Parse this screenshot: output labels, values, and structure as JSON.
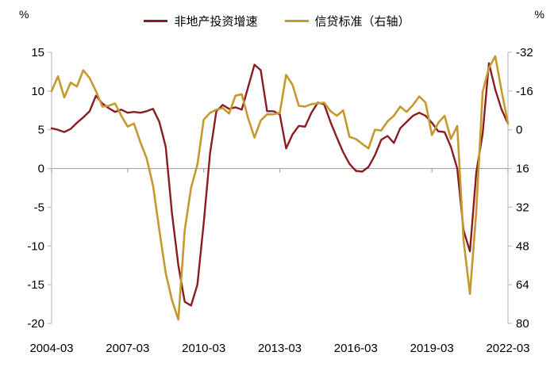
{
  "header": {
    "left_unit": "%",
    "right_unit": "%"
  },
  "legend": {
    "items": [
      {
        "label": "非地产投资增速",
        "color": "#8B1C22"
      },
      {
        "label": "信贷标准（右轴）",
        "color": "#C6992E"
      }
    ]
  },
  "chart_data": {
    "type": "line",
    "title": "",
    "x_start": "2004-03",
    "x_end": "2022-03",
    "x_frequency": "quarterly",
    "x_tick_labels": [
      "2004-03",
      "2007-03",
      "2010-03",
      "2013-03",
      "2016-03",
      "2019-03",
      "2022-03"
    ],
    "left_axis": {
      "label": "%",
      "ticks": [
        15,
        10,
        5,
        0,
        -5,
        -10,
        -15,
        -20
      ],
      "range": [
        -20,
        15
      ]
    },
    "right_axis": {
      "label": "%",
      "ticks": [
        -32,
        -16,
        0,
        16,
        32,
        48,
        64,
        80
      ],
      "range": [
        -32,
        80
      ],
      "inverted": true
    },
    "grid": "zero-line-only",
    "legend_position": "top-center",
    "colors": {
      "zero_line": "#A6A6A6",
      "axis_line": "#BFBFBF",
      "tick": "#BFBFBF",
      "text": "#000000"
    },
    "series": [
      {
        "name": "非地产投资增速",
        "axis": "left",
        "color": "#8B1C22",
        "width": 2.4,
        "values": [
          5.2,
          5.0,
          4.7,
          5.1,
          5.9,
          6.6,
          7.4,
          9.4,
          8.4,
          7.8,
          7.3,
          7.6,
          7.2,
          7.3,
          7.2,
          7.4,
          7.7,
          6.0,
          2.8,
          -5.8,
          -12.5,
          -17.2,
          -17.7,
          -15.0,
          -7.0,
          2.0,
          7.4,
          8.2,
          7.7,
          7.9,
          7.6,
          10.5,
          13.4,
          12.7,
          7.4,
          7.4,
          7.0,
          2.6,
          4.4,
          5.5,
          5.4,
          7.2,
          8.5,
          8.3,
          6.0,
          4.0,
          2.1,
          0.6,
          -0.3,
          -0.4,
          0.2,
          1.7,
          3.7,
          4.2,
          3.3,
          5.2,
          6.0,
          6.8,
          7.2,
          6.8,
          5.9,
          4.8,
          4.7,
          2.8,
          0.0,
          -8.0,
          -10.7,
          -0.5,
          4.5,
          13.6,
          10.2,
          7.6,
          5.8
        ]
      },
      {
        "name": "信贷标准（右轴）",
        "axis": "right",
        "color": "#C6992E",
        "width": 2.6,
        "values": [
          -16.0,
          -22.1,
          -13.4,
          -19.5,
          -17.9,
          -24.6,
          -21.4,
          -16.0,
          -9.6,
          -9.9,
          -10.9,
          -5.8,
          -1.3,
          -2.6,
          5.1,
          11.8,
          23.0,
          41.6,
          59.2,
          70.4,
          78.4,
          41.6,
          24.0,
          14.4,
          -4.2,
          -7.0,
          -8.3,
          -9.0,
          -6.7,
          -14.1,
          -14.7,
          -4.8,
          3.2,
          -3.8,
          -6.4,
          -6.4,
          -7.0,
          -22.7,
          -18.6,
          -9.9,
          -9.6,
          -10.6,
          -10.9,
          -11.2,
          -7.7,
          -5.8,
          -8.0,
          2.9,
          3.8,
          5.8,
          7.7,
          0.0,
          0.3,
          -3.5,
          -5.8,
          -9.6,
          -7.4,
          -10.2,
          -13.8,
          -11.2,
          2.2,
          -2.9,
          -5.8,
          3.8,
          -1.6,
          45.8,
          67.8,
          33.6,
          -15.7,
          -25.6,
          -30.4,
          -16.0,
          -2.6
        ]
      }
    ]
  }
}
